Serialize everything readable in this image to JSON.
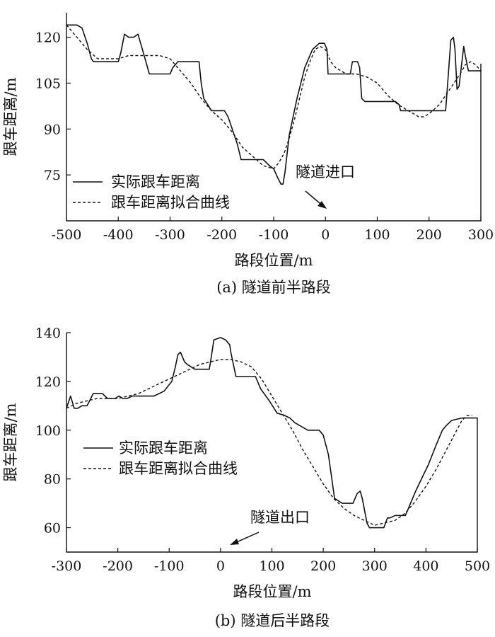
{
  "chart_data": [
    {
      "type": "line",
      "caption": "(a) 隧道前半路段",
      "xlabel": "路段位置/m",
      "ylabel": "跟车距离/m",
      "xlim": [
        -500,
        300
      ],
      "ylim": [
        60,
        128
      ],
      "xticks": [
        -500,
        -400,
        -300,
        -200,
        -100,
        0,
        100,
        200,
        300
      ],
      "yticks": [
        75,
        90,
        105,
        120
      ],
      "legend_position": "lower-left",
      "annotation": {
        "text": "隧道进口",
        "arrow_to_x": 0,
        "arrow_to_y": 63
      },
      "series": [
        {
          "name": "实际跟车距离",
          "style": "solid",
          "x": [
            -500,
            -480,
            -470,
            -460,
            -452,
            -448,
            -400,
            -395,
            -388,
            -380,
            -370,
            -362,
            -355,
            -340,
            -330,
            -310,
            -300,
            -295,
            -285,
            -272,
            -260,
            -252,
            -244,
            -240,
            -235,
            -220,
            -205,
            -195,
            -188,
            -180,
            -170,
            -163,
            -155,
            -145,
            -130,
            -120,
            -108,
            -100,
            -92,
            -86,
            -82,
            -78,
            -70,
            -55,
            -40,
            -25,
            -12,
            -2,
            3,
            5,
            10,
            35,
            45,
            48,
            52,
            62,
            66,
            70,
            76,
            100,
            125,
            135,
            142,
            145,
            180,
            210,
            232,
            236,
            242,
            247,
            250,
            254,
            258,
            262,
            267,
            270,
            276,
            281,
            290,
            300
          ],
          "y": [
            124,
            124,
            123,
            118,
            113,
            112,
            112,
            115,
            121,
            120,
            120,
            121,
            117,
            108,
            108,
            108,
            108,
            110,
            112,
            112,
            112,
            112,
            112,
            105,
            100,
            96,
            96,
            96,
            94,
            90,
            85,
            80,
            80,
            80,
            80,
            80,
            78,
            77,
            74,
            72,
            72,
            76,
            88,
            100,
            110,
            116,
            118,
            118,
            116,
            108,
            108,
            108,
            108,
            108,
            112,
            112,
            110,
            100,
            99,
            99,
            99,
            99,
            98,
            96,
            96,
            96,
            96,
            105,
            119,
            120,
            116,
            103,
            104,
            110,
            117,
            114,
            109,
            109,
            109,
            109
          ]
        },
        {
          "name": "跟车距离拟合曲线",
          "style": "dashed",
          "x": [
            -500,
            -480,
            -460,
            -440,
            -420,
            -400,
            -380,
            -360,
            -340,
            -320,
            -300,
            -280,
            -260,
            -240,
            -220,
            -200,
            -180,
            -160,
            -140,
            -120,
            -100,
            -90,
            -80,
            -70,
            -60,
            -50,
            -40,
            -30,
            -20,
            -10,
            0,
            10,
            20,
            40,
            60,
            80,
            100,
            120,
            140,
            160,
            180,
            190,
            200,
            220,
            240,
            260,
            270,
            280,
            290,
            300
          ],
          "y": [
            124,
            120,
            116,
            113,
            113,
            113,
            114,
            114,
            114,
            114,
            113,
            109,
            105,
            100,
            96,
            93,
            89,
            84,
            81,
            78,
            77,
            79,
            82,
            87,
            93,
            100,
            107,
            112,
            116,
            117,
            116,
            112,
            110,
            108,
            108,
            107,
            105,
            101,
            98,
            96,
            94,
            94,
            95,
            98,
            103,
            108,
            111,
            112,
            111,
            109
          ]
        }
      ]
    },
    {
      "type": "line",
      "caption": "(b) 隧道后半路段",
      "xlabel": "路段位置/m",
      "ylabel": "跟车距离/m",
      "xlim": [
        -300,
        500
      ],
      "ylim": [
        50,
        140
      ],
      "xticks": [
        -300,
        -200,
        -100,
        0,
        100,
        200,
        300,
        400,
        500
      ],
      "yticks": [
        60,
        80,
        100,
        120,
        140
      ],
      "legend_position": "middle-left",
      "annotation": {
        "text": "隧道出口",
        "arrow_to_x": 15,
        "arrow_to_y": 52
      },
      "series": [
        {
          "name": "实际跟车距离",
          "style": "solid",
          "x": [
            -300,
            -292,
            -285,
            -278,
            -270,
            -260,
            -255,
            -248,
            -238,
            -230,
            -220,
            -210,
            -205,
            -198,
            -190,
            -182,
            -172,
            -160,
            -152,
            -130,
            -110,
            -95,
            -88,
            -83,
            -78,
            -70,
            -65,
            -50,
            -35,
            -22,
            -18,
            -13,
            0,
            10,
            18,
            20,
            25,
            30,
            45,
            60,
            68,
            78,
            95,
            110,
            125,
            135,
            145,
            170,
            183,
            192,
            200,
            210,
            222,
            237,
            258,
            266,
            272,
            276,
            285,
            290,
            300,
            318,
            325,
            330,
            340,
            360,
            380,
            405,
            420,
            432,
            440,
            450,
            470,
            480,
            490,
            500
          ],
          "y": [
            109,
            114,
            109,
            109,
            110,
            110,
            112,
            115,
            115,
            115,
            113,
            113,
            113,
            114,
            113,
            113,
            114,
            114,
            114,
            114,
            116,
            120,
            126,
            131,
            132,
            128,
            127,
            125,
            125,
            125,
            130,
            137,
            138,
            137,
            135,
            132,
            127,
            122,
            122,
            122,
            122,
            117,
            112,
            107,
            106,
            105,
            103,
            100,
            100,
            100,
            98,
            90,
            72,
            70,
            70,
            74,
            75,
            72,
            62,
            60,
            60,
            60,
            64,
            64,
            65,
            65,
            75,
            86,
            94,
            100,
            102,
            104,
            105,
            105,
            105,
            105
          ]
        },
        {
          "name": "跟车距离拟合曲线",
          "style": "dashed",
          "x": [
            -300,
            -280,
            -260,
            -240,
            -220,
            -200,
            -180,
            -160,
            -140,
            -120,
            -100,
            -80,
            -60,
            -40,
            -20,
            0,
            20,
            40,
            60,
            80,
            100,
            120,
            140,
            160,
            180,
            200,
            220,
            240,
            260,
            280,
            300,
            320,
            340,
            360,
            380,
            400,
            420,
            440,
            460,
            470,
            480,
            490
          ],
          "y": [
            109,
            111,
            112,
            113,
            113,
            113,
            114,
            115,
            117,
            119,
            121,
            123,
            125,
            127,
            128,
            129,
            129,
            128,
            126,
            121,
            114,
            107,
            100,
            92,
            85,
            78,
            72,
            68,
            65,
            63,
            61,
            62,
            63,
            66,
            71,
            77,
            84,
            92,
            100,
            104,
            106,
            106
          ]
        }
      ]
    }
  ]
}
